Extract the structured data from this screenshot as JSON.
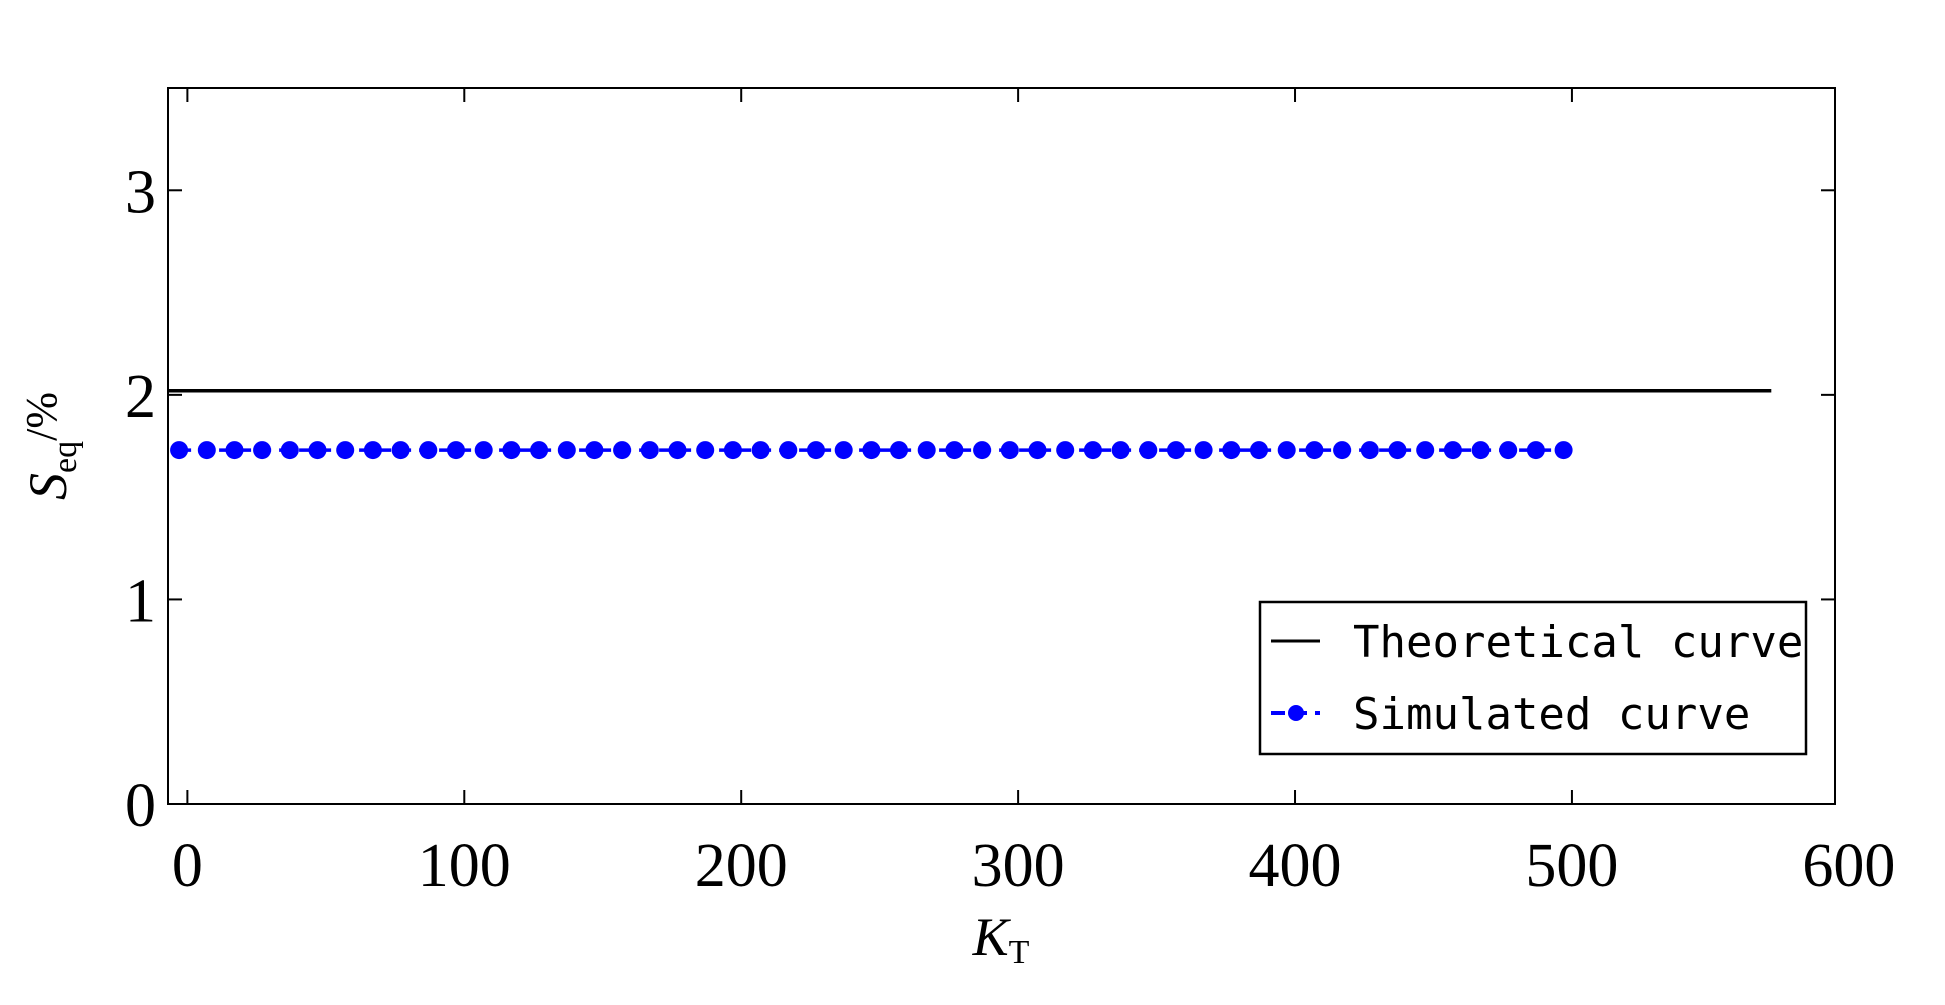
{
  "chart_data": {
    "type": "line",
    "xlabel": {
      "main": "K",
      "sub": "T"
    },
    "ylabel": {
      "main": "S",
      "sub": "eq",
      "suffix": "/%"
    },
    "xlim": [
      -7,
      595
    ],
    "ylim": [
      0,
      3.5
    ],
    "xticks": [
      0,
      100,
      200,
      300,
      400,
      500,
      600
    ],
    "yticks": [
      0,
      1,
      2,
      3
    ],
    "grid": false,
    "legend_position": "bottom-right",
    "series": [
      {
        "name": "Theoretical curve",
        "style": "solid",
        "color": "#000000",
        "x": [
          -7,
          572
        ],
        "y": [
          2.02,
          2.02
        ]
      },
      {
        "name": "Simulated curve",
        "style": "dashed-dot-markers",
        "color": "#0000ff",
        "x_start": -3,
        "x_end": 502,
        "x_step": 10,
        "y_value": 1.73
      }
    ]
  }
}
